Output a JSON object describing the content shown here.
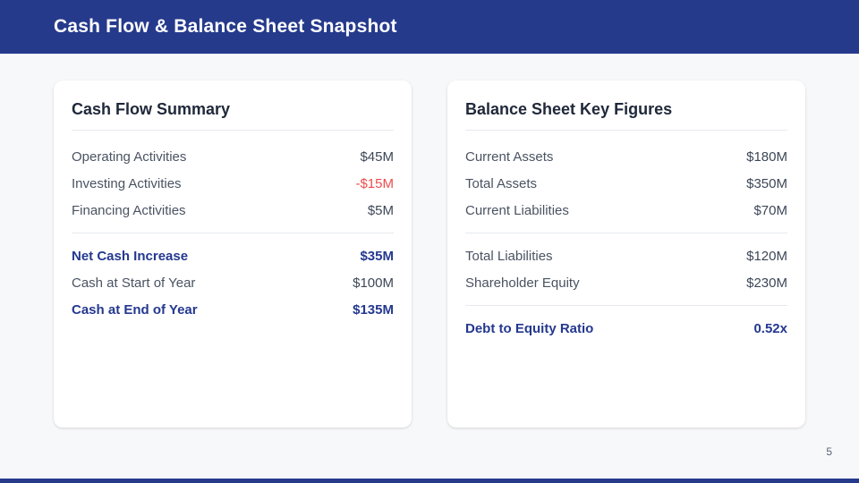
{
  "header": {
    "title": "Cash Flow & Balance Sheet Snapshot"
  },
  "footer": {
    "page_number": "5"
  },
  "colors": {
    "header_bg": "#263a8c",
    "emphasis_blue": "#24388f",
    "negative_red": "#ef4b4b",
    "page_bg": "#f7f8fa",
    "card_bg": "#ffffff"
  },
  "cards": [
    {
      "title": "Cash Flow Summary",
      "rows": [
        {
          "label": "Operating Activities",
          "value": "$45M"
        },
        {
          "label": "Investing Activities",
          "value": "-$15M"
        },
        {
          "label": "Financing Activities",
          "value": "$5M"
        },
        {
          "label": "Net Cash Increase",
          "value": "$35M"
        },
        {
          "label": "Cash at Start of Year",
          "value": "$100M"
        },
        {
          "label": "Cash at End of Year",
          "value": "$135M"
        }
      ]
    },
    {
      "title": "Balance Sheet Key Figures",
      "rows": [
        {
          "label": "Current Assets",
          "value": "$180M"
        },
        {
          "label": "Total Assets",
          "value": "$350M"
        },
        {
          "label": "Current Liabilities",
          "value": "$70M"
        },
        {
          "label": "Total Liabilities",
          "value": "$120M"
        },
        {
          "label": "Shareholder Equity",
          "value": "$230M"
        },
        {
          "label": "Debt to Equity Ratio",
          "value": "0.52x"
        }
      ]
    }
  ]
}
